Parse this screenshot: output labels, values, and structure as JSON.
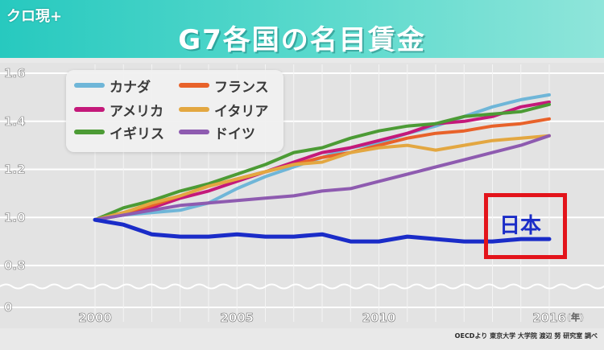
{
  "header": {
    "logo": "クロ現+",
    "title": "G7各国の名目賃金"
  },
  "chart_data": {
    "type": "line",
    "title": "G7各国の名目賃金",
    "x_start": 2000,
    "x_end": 2016,
    "ylim": [
      0.8,
      1.6
    ],
    "ytick_labels": [
      "1.6",
      "1.4",
      "1.2",
      "1.0",
      "0.8",
      "0"
    ],
    "xtick_labels": [
      "2000",
      "2005",
      "2010",
      "2016"
    ],
    "x_unit": "(年)",
    "grid": true,
    "legend_position": "top-left",
    "axis_break": true,
    "series": [
      {
        "name": "カナダ",
        "color": "#6fb6d8",
        "values": [
          0.99,
          1.01,
          1.02,
          1.03,
          1.06,
          1.12,
          1.17,
          1.21,
          1.25,
          1.29,
          1.31,
          1.35,
          1.38,
          1.42,
          1.46,
          1.49,
          1.51
        ]
      },
      {
        "name": "アメリカ",
        "color": "#c4197a",
        "values": [
          0.99,
          1.02,
          1.04,
          1.08,
          1.11,
          1.15,
          1.19,
          1.23,
          1.27,
          1.29,
          1.32,
          1.35,
          1.39,
          1.4,
          1.42,
          1.46,
          1.48
        ]
      },
      {
        "name": "イギリス",
        "color": "#4c9b35",
        "values": [
          0.99,
          1.04,
          1.07,
          1.11,
          1.14,
          1.18,
          1.22,
          1.27,
          1.29,
          1.33,
          1.36,
          1.38,
          1.39,
          1.42,
          1.43,
          1.44,
          1.47
        ]
      },
      {
        "name": "フランス",
        "color": "#e8622a",
        "values": [
          0.99,
          1.02,
          1.05,
          1.09,
          1.13,
          1.16,
          1.19,
          1.22,
          1.25,
          1.27,
          1.3,
          1.33,
          1.35,
          1.36,
          1.38,
          1.39,
          1.41
        ]
      },
      {
        "name": "イタリア",
        "color": "#e3a741",
        "values": [
          0.99,
          1.02,
          1.06,
          1.09,
          1.13,
          1.16,
          1.19,
          1.22,
          1.23,
          1.27,
          1.29,
          1.3,
          1.28,
          1.3,
          1.32,
          1.33,
          1.34
        ]
      },
      {
        "name": "ドイツ",
        "color": "#8e5bb0",
        "values": [
          0.99,
          1.01,
          1.03,
          1.05,
          1.06,
          1.07,
          1.08,
          1.09,
          1.11,
          1.12,
          1.15,
          1.18,
          1.21,
          1.24,
          1.27,
          1.3,
          1.34
        ]
      },
      {
        "name": "日本",
        "color": "#1a2cc8",
        "values": [
          0.99,
          0.97,
          0.93,
          0.92,
          0.92,
          0.93,
          0.92,
          0.92,
          0.93,
          0.9,
          0.9,
          0.92,
          0.91,
          0.9,
          0.9,
          0.91,
          0.91
        ]
      }
    ]
  },
  "source": "OECDより 東京大学 大学院 渡辺 努 研究室 調べ"
}
